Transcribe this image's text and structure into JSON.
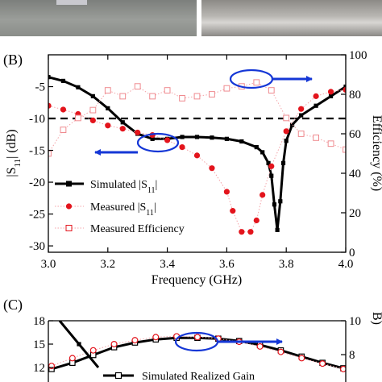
{
  "panel_b": {
    "label": "(B)",
    "y1_label_main": "|S",
    "y1_label_sub": "11",
    "y1_label_tail": "| (dB)",
    "y2_label": "Efficiency (%)",
    "x_label": "Frequency (GHz)",
    "legend": [
      {
        "text": "Simulated |S",
        "sub": "11",
        "tail": "|"
      },
      {
        "text": "Measured |S",
        "sub": "11",
        "tail": "|"
      },
      {
        "text": "Measured Efficiency",
        "sub": "",
        "tail": ""
      }
    ]
  },
  "panel_c": {
    "label": "(C)",
    "y2_label_fragment": "B)",
    "legend": [
      {
        "text": "Simulated Realized Gain"
      }
    ]
  },
  "chart_data": [
    {
      "type": "line",
      "x_ticks": [
        "3.0",
        "3.2",
        "3.4",
        "3.6",
        "3.8",
        "4.0"
      ],
      "y1_ticks": [
        "-5",
        "-10",
        "-15",
        "-20",
        "-25",
        "-30"
      ],
      "y2_ticks": [
        "0",
        "20",
        "40",
        "60",
        "80",
        "100"
      ],
      "xlim": [
        3.0,
        4.0
      ],
      "ylim": [
        -31,
        0
      ],
      "y2lim": [
        0,
        100
      ],
      "reference_line": -10,
      "series": [
        {
          "name": "Simulated |S11|",
          "axis": "left",
          "style": "solid-square",
          "color": "#000000",
          "x": [
            3.0,
            3.05,
            3.1,
            3.15,
            3.2,
            3.25,
            3.3,
            3.35,
            3.4,
            3.45,
            3.5,
            3.55,
            3.6,
            3.65,
            3.7,
            3.72,
            3.74,
            3.75,
            3.76,
            3.77,
            3.78,
            3.79,
            3.8,
            3.82,
            3.85,
            3.9,
            3.95,
            4.0
          ],
          "y": [
            -3.5,
            -4.1,
            -5.1,
            -6.5,
            -8.4,
            -10.6,
            -12.4,
            -13.2,
            -13.2,
            -12.9,
            -12.9,
            -13.0,
            -13.2,
            -13.6,
            -14.5,
            -15.3,
            -17.0,
            -19.0,
            -23.5,
            -27.5,
            -23.0,
            -17.0,
            -13.5,
            -11.0,
            -9.5,
            -8.0,
            -6.5,
            -5.0
          ]
        },
        {
          "name": "Measured |S11|",
          "axis": "left",
          "style": "dot-circle",
          "color": "#e3141c",
          "x": [
            3.0,
            3.05,
            3.1,
            3.15,
            3.2,
            3.25,
            3.3,
            3.35,
            3.4,
            3.45,
            3.5,
            3.55,
            3.6,
            3.62,
            3.65,
            3.68,
            3.7,
            3.72,
            3.75,
            3.8,
            3.85,
            3.9,
            3.95,
            4.0
          ],
          "y": [
            -8.0,
            -8.6,
            -9.3,
            -10.3,
            -11.1,
            -11.6,
            -12.2,
            -12.6,
            -13.4,
            -14.5,
            -15.8,
            -17.8,
            -21.5,
            -24.5,
            -27.8,
            -27.8,
            -26.0,
            -22.0,
            -17.5,
            -12.0,
            -8.5,
            -6.5,
            -5.8,
            -5.5
          ]
        },
        {
          "name": "Measured Efficiency",
          "axis": "right",
          "style": "dot-open-square",
          "color": "#ef8a8f",
          "x": [
            3.0,
            3.05,
            3.1,
            3.15,
            3.2,
            3.25,
            3.3,
            3.35,
            3.4,
            3.45,
            3.5,
            3.55,
            3.6,
            3.65,
            3.7,
            3.75,
            3.8,
            3.85,
            3.9,
            3.95,
            4.0
          ],
          "y": [
            50,
            62,
            68,
            72,
            82,
            79,
            84,
            79,
            82,
            78,
            79,
            80,
            83,
            84,
            86,
            82,
            68,
            60,
            58,
            55,
            52
          ]
        }
      ]
    },
    {
      "type": "line",
      "y1_ticks": [
        "18",
        "15",
        "12"
      ],
      "y2_ticks": [
        "10",
        "8"
      ],
      "series": [
        {
          "name": "Simulated Realized Gain",
          "axis": "left",
          "style": "solid-open-square",
          "color": "#000000",
          "y_visible": [
            11.8,
            12.6,
            13.6,
            14.6,
            15.2,
            15.6,
            15.8,
            15.8,
            15.7,
            15.4,
            14.9,
            14.2,
            13.4,
            12.6,
            11.9
          ]
        },
        {
          "name": "",
          "axis": "left",
          "style": "dot-open-circle",
          "color": "#e3141c",
          "y_visible": [
            12.2,
            13.2,
            14.2,
            15.0,
            15.5,
            15.9,
            16.0,
            15.9,
            15.7,
            15.3,
            14.7,
            14.0,
            13.2,
            12.5,
            11.8
          ]
        },
        {
          "name": "",
          "axis": "left",
          "style": "solid",
          "color": "#000000",
          "y_visible": [
            18.0,
            15.0,
            12.0
          ]
        }
      ]
    }
  ]
}
